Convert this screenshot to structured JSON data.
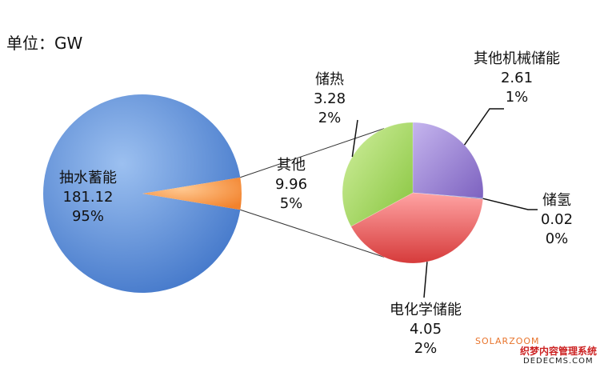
{
  "unit_label": "单位：GW",
  "chart_data": {
    "type": "pie",
    "unit": "GW",
    "main_pie": {
      "slices": [
        {
          "name": "抽水蓄能",
          "value": "181.12",
          "percent": "95%",
          "color": "#5b8ed6"
        },
        {
          "name": "其他",
          "value": "9.96",
          "percent": "5%",
          "color": "#f99a4e"
        }
      ]
    },
    "detail_pie": {
      "of": "其他",
      "slices": [
        {
          "name": "其他机械储能",
          "value": "2.61",
          "percent": "1%",
          "color": "#9f86d4"
        },
        {
          "name": "储氢",
          "value": "0.02",
          "percent": "0%",
          "color": "#6f8fd0"
        },
        {
          "name": "电化学储能",
          "value": "4.05",
          "percent": "2%",
          "color": "#ea5f5f"
        },
        {
          "name": "储热",
          "value": "3.28",
          "percent": "2%",
          "color": "#9ed45a"
        }
      ]
    }
  },
  "watermark": {
    "line1": "SOLARZOOM",
    "line2": "织梦内容管理系统",
    "line3": "DEDECMS.COM"
  }
}
